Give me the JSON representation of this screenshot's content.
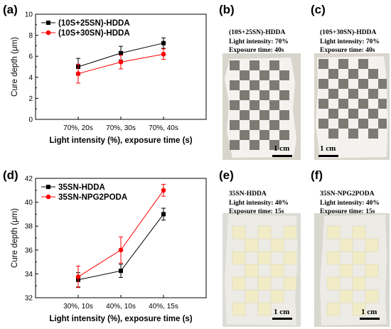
{
  "panels": {
    "a": "(a)",
    "b": "(b)",
    "c": "(c)",
    "d": "(d)",
    "e": "(e)",
    "f": "(f)"
  },
  "chart_data": [
    {
      "type": "line",
      "panel": "(a)",
      "categories": [
        "70%, 20s",
        "70%, 30s",
        "70%, 40s"
      ],
      "ylabel": "Cure depth (μm)",
      "xlabel": "Light intensity (%), exposure time (s)",
      "ylim": [
        0,
        10
      ],
      "yticks": [
        0,
        2,
        4,
        6,
        8,
        10
      ],
      "legend_position": "top-left",
      "series": [
        {
          "name": "(10S+25SN)-HDDA",
          "color": "#000000",
          "marker": "square",
          "values": [
            5.0,
            6.3,
            7.25
          ],
          "errors": [
            0.8,
            0.65,
            0.5
          ]
        },
        {
          "name": "(10S+30SN)-HDDA",
          "color": "#ff0000",
          "marker": "circle",
          "values": [
            4.35,
            5.45,
            6.2
          ],
          "errors": [
            0.9,
            0.65,
            0.5
          ]
        }
      ]
    },
    {
      "type": "line",
      "panel": "(d)",
      "categories": [
        "30%, 10s",
        "40%, 10s",
        "40%, 15s"
      ],
      "ylabel": "Cure depth (μm)",
      "xlabel": "Light intensity (%), exposure time (s)",
      "ylim": [
        32,
        42
      ],
      "yticks": [
        32,
        34,
        36,
        38,
        40,
        42
      ],
      "legend_position": "top-left",
      "series": [
        {
          "name": "35SN-HDDA",
          "color": "#000000",
          "marker": "square",
          "values": [
            33.5,
            34.25,
            39.0
          ],
          "errors": [
            0.6,
            0.55,
            0.5
          ]
        },
        {
          "name": "35SN-NPG2PODA",
          "color": "#ff0000",
          "marker": "circle",
          "values": [
            33.75,
            36.0,
            41.0
          ],
          "errors": [
            0.9,
            1.1,
            0.5
          ]
        }
      ]
    }
  ],
  "photos": {
    "b": {
      "lines": [
        "(10S+25SN)-HDDA",
        "Light intensity: 70%",
        "Exposure time: 40s"
      ],
      "scale": "1 cm"
    },
    "c": {
      "lines": [
        "(10S+30SN)-HDDA",
        "Light intensity: 70%",
        "Exposure time: 40s"
      ],
      "scale": "1 cm"
    },
    "e": {
      "lines": [
        "35SN-HDDA",
        "Light intensity: 40%",
        "Exposure time: 15s"
      ],
      "scale": "1 cm"
    },
    "f": {
      "lines": [
        "35SN-NPG2PODA",
        "Light intensity: 40%",
        "Exposure time: 15s"
      ],
      "scale": "1 cm"
    }
  },
  "colors": {
    "black_series": "#000000",
    "red_series": "#ff0000",
    "photo_bg_b": "#d8d5cc",
    "photo_bg_c": "#d9d6cd",
    "photo_bg_e": "#dcdcd6",
    "photo_bg_f": "#d8d8cf",
    "gray_square": "#7d7a73",
    "cream_square": "#f1ecc6"
  }
}
